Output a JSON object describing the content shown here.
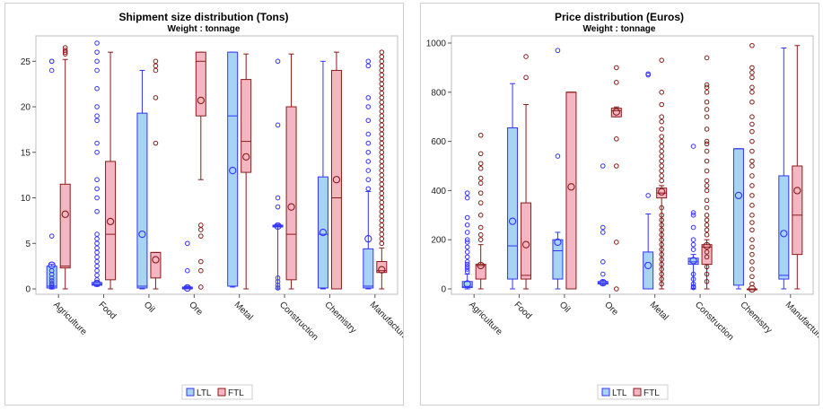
{
  "chart_data": [
    {
      "type": "boxplot",
      "title": "Shipment size distribution (Tons)",
      "subtitle": "Weight : tonnage",
      "xlabel": "",
      "ylabel": "",
      "ylim": [
        0,
        27
      ],
      "yticks": [
        0,
        5,
        10,
        15,
        20,
        25
      ],
      "categories": [
        "Agriculture",
        "Food",
        "Oil",
        "Ore",
        "Metal",
        "Construction",
        "Chemistry",
        "Manufacturing"
      ],
      "legend_position": "bottom",
      "series": [
        {
          "name": "LTL",
          "color": "#3333ff",
          "fill": "#a6d4f2",
          "boxes": [
            {
              "min": 0,
              "q1": 0.1,
              "median": 0.3,
              "q3": 2.5,
              "max": 2.7,
              "mean": 2.6,
              "outliers": [
                24,
                25,
                25,
                5.8,
                2,
                1.6,
                1.2,
                0.9,
                0.6,
                0.4,
                0.2
              ]
            },
            {
              "min": 0.3,
              "q1": 0.4,
              "median": 0.5,
              "q3": 0.7,
              "max": 0.8,
              "mean": 0.6,
              "outliers": [
                27,
                26,
                25,
                24,
                22,
                20,
                19,
                18.5,
                16,
                15,
                12,
                11,
                10,
                8.5,
                6,
                5.5,
                5,
                4.5,
                4,
                3.5,
                3,
                2.5,
                2,
                1.5,
                1
              ]
            },
            {
              "min": 0,
              "q1": 0.1,
              "median": 0.3,
              "q3": 19.3,
              "max": 24,
              "mean": 6,
              "outliers": []
            },
            {
              "min": 0,
              "q1": 0,
              "median": 0.1,
              "q3": 0.2,
              "max": 0.3,
              "mean": 0.1,
              "outliers": [
                5,
                2
              ]
            },
            {
              "min": 0.2,
              "q1": 0.3,
              "median": 19,
              "q3": 26,
              "max": 26,
              "mean": 13,
              "outliers": []
            },
            {
              "min": 0,
              "q1": 6.8,
              "median": 6.9,
              "q3": 7,
              "max": 7.1,
              "mean": 6.9,
              "outliers": [
                25,
                18,
                10,
                9,
                1.2,
                0.8,
                0.4,
                0.1
              ]
            },
            {
              "min": 0,
              "q1": 0.1,
              "median": 6,
              "q3": 12.3,
              "max": 25,
              "mean": 6.2,
              "outliers": []
            },
            {
              "min": 0,
              "q1": 0.1,
              "median": 0.3,
              "q3": 4.4,
              "max": 10.7,
              "mean": 5.5,
              "outliers": [
                25,
                24.5,
                21,
                20,
                18.5,
                17,
                16,
                15,
                14,
                13,
                12,
                11
              ]
            }
          ]
        },
        {
          "name": "FTL",
          "color": "#8b1a1a",
          "fill": "#f4b6c2",
          "boxes": [
            {
              "min": 0,
              "q1": 2.3,
              "median": 2.5,
              "q3": 11.5,
              "max": 25.2,
              "mean": 8.2,
              "outliers": [
                26.5,
                26.2,
                26,
                25.8
              ]
            },
            {
              "min": 0,
              "q1": 1,
              "median": 6,
              "q3": 14,
              "max": 26,
              "mean": 7.4,
              "outliers": []
            },
            {
              "min": 0,
              "q1": 1.2,
              "median": 4,
              "q3": 4,
              "max": 4,
              "mean": 3.2,
              "outliers": [
                25,
                24.5,
                24,
                21,
                16
              ]
            },
            {
              "min": 12,
              "q1": 19,
              "median": 25,
              "q3": 26,
              "max": 26,
              "mean": 20.7,
              "outliers": [
                7,
                6.5,
                5.8,
                3,
                2,
                0.2
              ]
            },
            {
              "min": 0,
              "q1": 12.8,
              "median": 16.2,
              "q3": 23,
              "max": 25.8,
              "mean": 14.5,
              "outliers": []
            },
            {
              "min": 0,
              "q1": 1,
              "median": 6,
              "q3": 20,
              "max": 25.8,
              "mean": 9,
              "outliers": []
            },
            {
              "min": 0,
              "q1": 0,
              "median": 10,
              "q3": 24,
              "max": 26,
              "mean": 12,
              "outliers": []
            },
            {
              "min": 0,
              "q1": 1.8,
              "median": 2,
              "q3": 3,
              "max": 4.5,
              "mean": 2.1,
              "outliers": [
                26,
                25.5,
                25,
                24.5,
                24,
                23.5,
                23,
                22.5,
                22,
                21.5,
                21,
                20.5,
                20,
                19.5,
                19,
                18.5,
                18,
                17.5,
                17,
                16.5,
                16,
                15.5,
                15,
                14.5,
                14,
                13.5,
                13,
                12.5,
                12,
                11.5,
                11,
                10.5,
                10,
                9.5,
                9,
                8.5,
                8,
                7.5,
                7,
                6.5,
                6,
                5.5,
                5
              ]
            }
          ]
        }
      ]
    },
    {
      "type": "boxplot",
      "title": "Price distribution (Euros)",
      "subtitle": "Weight : tonnage",
      "xlabel": "",
      "ylabel": "",
      "ylim": [
        0,
        1000
      ],
      "yticks": [
        0,
        200,
        400,
        600,
        800,
        1000
      ],
      "categories": [
        "Agriculture",
        "Food",
        "Oil",
        "Ore",
        "Metal",
        "Construction",
        "Chemistry",
        "Manufacturing"
      ],
      "legend_position": "bottom",
      "series": [
        {
          "name": "LTL",
          "color": "#3333ff",
          "fill": "#a6d4f2",
          "boxes": [
            {
              "min": 0,
              "q1": 5,
              "median": 10,
              "q3": 30,
              "max": 60,
              "mean": 20,
              "outliers": [
                390,
                370,
                290,
                260,
                230,
                200,
                190,
                170,
                150,
                130,
                110,
                100,
                90,
                80,
                70
              ]
            },
            {
              "min": 0,
              "q1": 40,
              "median": 175,
              "q3": 655,
              "max": 835,
              "mean": 275,
              "outliers": []
            },
            {
              "min": 0,
              "q1": 40,
              "median": 155,
              "q3": 200,
              "max": 230,
              "mean": 190,
              "outliers": [
                970,
                540
              ]
            },
            {
              "min": 15,
              "q1": 20,
              "median": 25,
              "q3": 30,
              "max": 35,
              "mean": 25,
              "outliers": [
                500,
                250,
                230,
                110,
                60
              ]
            },
            {
              "min": 0,
              "q1": 0,
              "median": 0,
              "q3": 150,
              "max": 305,
              "mean": 95,
              "outliers": [
                875,
                870,
                380
              ]
            },
            {
              "min": 0,
              "q1": 100,
              "median": 110,
              "q3": 125,
              "max": 140,
              "mean": 115,
              "outliers": [
                580,
                310,
                300,
                250,
                200,
                180,
                160,
                60,
                40,
                20,
                10,
                5
              ]
            },
            {
              "min": 0,
              "q1": 15,
              "median": 570,
              "q3": 570,
              "max": 570,
              "mean": 380,
              "outliers": []
            },
            {
              "min": 0,
              "q1": 40,
              "median": 55,
              "q3": 460,
              "max": 980,
              "mean": 225,
              "outliers": []
            }
          ]
        },
        {
          "name": "FTL",
          "color": "#8b1a1a",
          "fill": "#f4b6c2",
          "boxes": [
            {
              "min": 0,
              "q1": 40,
              "median": 95,
              "q3": 100,
              "max": 180,
              "mean": 95,
              "outliers": [
                625,
                550,
                510,
                490,
                450,
                430,
                390,
                350,
                300,
                250,
                220,
                200
              ]
            },
            {
              "min": 0,
              "q1": 40,
              "median": 55,
              "q3": 350,
              "max": 750,
              "mean": 180,
              "outliers": [
                945,
                860
              ]
            },
            {
              "min": 0,
              "q1": 0,
              "median": 800,
              "q3": 800,
              "max": 800,
              "mean": 415,
              "outliers": []
            },
            {
              "min": 700,
              "q1": 700,
              "median": 725,
              "q3": 735,
              "max": 740,
              "mean": 720,
              "outliers": [
                900,
                840,
                610,
                500,
                190,
                0
              ]
            },
            {
              "min": 0,
              "q1": 370,
              "median": 390,
              "q3": 410,
              "max": 420,
              "mean": 395,
              "outliers": [
                930,
                800,
                750,
                700,
                680,
                650,
                620,
                600,
                580,
                560,
                540,
                520,
                500,
                480,
                460,
                440,
                330,
                300,
                280,
                260,
                240,
                220,
                200,
                180,
                160,
                140,
                120,
                100,
                80,
                60,
                40,
                20
              ]
            },
            {
              "min": 0,
              "q1": 100,
              "median": 170,
              "q3": 180,
              "max": 200,
              "mean": 175,
              "outliers": [
                940,
                830,
                820,
                800,
                760,
                730,
                700,
                650,
                600,
                590,
                560,
                520,
                480,
                440,
                420,
                400,
                360,
                330,
                300,
                280,
                260,
                240,
                220,
                150,
                130,
                90,
                60,
                30
              ]
            },
            {
              "min": 0,
              "q1": 0,
              "median": 0,
              "q3": 0,
              "max": 0,
              "mean": 0,
              "outliers": [
                990,
                900,
                880,
                860,
                820,
                800,
                760,
                700,
                670,
                640,
                600,
                560,
                520,
                500,
                460,
                420,
                380,
                340,
                300,
                270,
                240,
                200,
                170,
                140,
                110,
                80,
                50,
                20
              ]
            },
            {
              "min": 0,
              "q1": 140,
              "median": 300,
              "q3": 500,
              "max": 990,
              "mean": 400,
              "outliers": []
            }
          ]
        }
      ]
    }
  ]
}
